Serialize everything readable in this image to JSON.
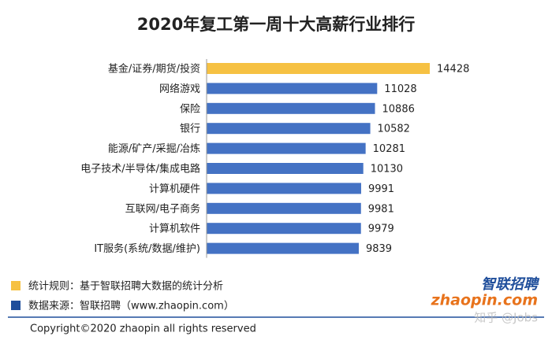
{
  "chart_data": {
    "type": "barh",
    "title": "2020年复工第一周十大高薪行业排行",
    "categories": [
      "基金/证券/期货/投资",
      "网络游戏",
      "保险",
      "银行",
      "能源/矿产/采掘/冶炼",
      "电子技术/半导体/集成电路",
      "计算机硬件",
      "互联网/电子商务",
      "计算机软件",
      "IT服务(系统/数据/维护)"
    ],
    "values": [
      14428,
      11028,
      10886,
      10582,
      10281,
      10130,
      9991,
      9981,
      9979,
      9839
    ],
    "colors": [
      "#f6c143",
      "#4472c4",
      "#4472c4",
      "#4472c4",
      "#4472c4",
      "#4472c4",
      "#4472c4",
      "#4472c4",
      "#4472c4",
      "#4472c4"
    ],
    "notes": [
      {
        "text": "统计规则：基于智联招聘大数据的统计分析",
        "color": "#f6c143"
      },
      {
        "text": "数据来源：智联招聘（www.zhaopin.com）",
        "color": "#1f4e9b"
      }
    ]
  },
  "footer": {
    "copyright": "Copyright©2020 zhaopin all rights reserved",
    "logo_cn": "智联招聘",
    "logo_en": "zhaopin.com",
    "watermark": "知乎 @Jobs"
  }
}
